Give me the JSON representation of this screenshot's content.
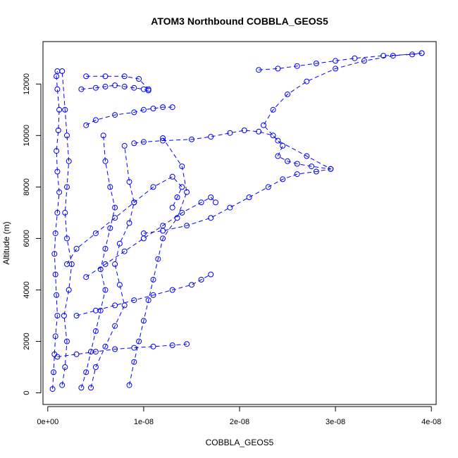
{
  "chart_data": {
    "type": "scatter",
    "title": "ATOM3 Northbound COBBLA_GEOS5",
    "xlabel": "COBBLA_GEOS5",
    "ylabel": "Altitude (m)",
    "xlim": [
      -5e-10,
      4.05e-08
    ],
    "ylim": [
      -450,
      13650
    ],
    "x_ticks": [
      0,
      1e-08,
      2e-08,
      3e-08,
      4e-08
    ],
    "x_tick_labels": [
      "0e+00",
      "1e-08",
      "2e-08",
      "3e-08",
      "4e-08"
    ],
    "y_ticks": [
      0,
      2000,
      4000,
      6000,
      8000,
      10000,
      12000
    ],
    "y_tick_labels": [
      "0",
      "2000",
      "4000",
      "6000",
      "8000",
      "10000",
      "12000"
    ],
    "marker": "open-circle",
    "color": "#0000ff",
    "grid": false,
    "series": [
      {
        "x": [
          5e-10,
          6e-10,
          7e-10,
          8e-10,
          1e-09,
          9e-10,
          8e-10,
          7e-10,
          8e-10,
          1e-09,
          1.2e-09,
          1e-09,
          9e-10,
          1.1e-09,
          1.2e-09,
          1e-09,
          9e-10,
          1e-09
        ],
        "y": [
          150,
          800,
          1500,
          2200,
          3000,
          3800,
          4600,
          5400,
          6200,
          7000,
          7800,
          8600,
          9400,
          10200,
          11000,
          11800,
          12300,
          12500
        ]
      },
      {
        "x": [
          1.5e-09,
          1.8e-09,
          2e-09,
          1.7e-09,
          2.2e-09,
          2.5e-09,
          2e-09,
          1.8e-09,
          2e-09,
          2.2e-09,
          2e-09,
          1.8e-09,
          1.5e-09
        ],
        "y": [
          300,
          1000,
          2000,
          3000,
          4000,
          5000,
          6000,
          7000,
          8000,
          9000,
          10000,
          11000,
          12500
        ]
      },
      {
        "x": [
          3.5e-09,
          4e-09,
          4.5e-09,
          5e-09,
          5.5e-09,
          6e-09,
          5.5e-09,
          6e-09,
          6.5e-09,
          7e-09,
          6.5e-09,
          6e-09,
          5.8e-09
        ],
        "y": [
          200,
          800,
          1600,
          2400,
          3200,
          4000,
          4800,
          5600,
          6400,
          7200,
          8000,
          9000,
          10000
        ]
      },
      {
        "x": [
          4.5e-09,
          5e-09,
          6e-09,
          7e-09,
          8e-09,
          7.5e-09,
          7e-09,
          7.5e-09,
          8.5e-09,
          9e-09,
          8.5e-09,
          8e-09
        ],
        "y": [
          200,
          1000,
          1800,
          2600,
          3400,
          4200,
          5000,
          5800,
          6600,
          7400,
          8200,
          9600
        ]
      },
      {
        "x": [
          8.5e-09,
          9e-09,
          9.5e-09,
          1e-08,
          1.05e-08,
          1.1e-08,
          1.15e-08,
          1.2e-08,
          1.35e-08,
          1.45e-08,
          1.4e-08,
          1.2e-08
        ],
        "y": [
          300,
          1200,
          2000,
          2800,
          3600,
          4400,
          5200,
          6000,
          6800,
          7800,
          8800,
          9900
        ]
      },
      {
        "x": [
          1e-08,
          1.2e-08,
          1.45e-08,
          1.7e-08,
          1.9e-08,
          2.1e-08,
          2.3e-08,
          2.45e-08,
          2.6e-08,
          2.8e-08,
          2.95e-08,
          2.7e-08,
          2.4e-08,
          2.25e-08,
          2.35e-08,
          2.5e-08,
          2.7e-08,
          3e-08,
          3.3e-08,
          3.6e-08,
          3.9e-08
        ],
        "y": [
          6200,
          6300,
          6500,
          6800,
          7200,
          7600,
          8000,
          8300,
          8500,
          8600,
          8700,
          9200,
          9800,
          10400,
          11000,
          11600,
          12100,
          12600,
          12900,
          13100,
          13200
        ]
      },
      {
        "x": [
          2.2e-08,
          2.4e-08,
          2.6e-08,
          2.8e-08,
          3e-08,
          3.2e-08,
          3.5e-08,
          3.8e-08,
          3.9e-08
        ],
        "y": [
          12550,
          12600,
          12700,
          12800,
          12900,
          13000,
          13100,
          13150,
          13200
        ]
      },
      {
        "x": [
          9e-09,
          1e-08,
          1.2e-08,
          1.5e-08,
          1.7e-08,
          1.9e-08,
          2.05e-08,
          2.2e-08,
          2.35e-08,
          2.45e-08,
          2.4e-08,
          2.5e-08,
          2.6e-08,
          2.75e-08,
          2.95e-08
        ],
        "y": [
          9700,
          9750,
          9800,
          9850,
          9950,
          10100,
          10200,
          10150,
          10000,
          9600,
          9200,
          9000,
          8900,
          8800,
          8700
        ]
      },
      {
        "x": [
          2e-09,
          3e-09,
          5e-09,
          7e-09,
          9e-09,
          1.1e-08,
          1.3e-08,
          1.4e-08,
          1.35e-08,
          1.3e-08
        ],
        "y": [
          5000,
          5600,
          6200,
          6800,
          7400,
          8000,
          8400,
          8000,
          7600,
          7200
        ]
      },
      {
        "x": [
          4e-09,
          6e-09,
          8e-09,
          1e-08,
          1.2e-08,
          1.4e-08,
          1.6e-08,
          1.7e-08,
          1.75e-08
        ],
        "y": [
          4500,
          5000,
          5500,
          6000,
          6500,
          7000,
          7400,
          7600,
          7400
        ]
      },
      {
        "x": [
          1e-09,
          3e-09,
          5e-09,
          7e-09,
          9e-09,
          1.1e-08,
          1.3e-08,
          1.45e-08
        ],
        "y": [
          1400,
          1500,
          1600,
          1700,
          1750,
          1800,
          1850,
          1900
        ]
      },
      {
        "x": [
          3e-09,
          5e-09,
          7e-09,
          9e-09,
          1.1e-08,
          1.3e-08,
          1.5e-08,
          1.6e-08,
          1.7e-08
        ],
        "y": [
          3000,
          3200,
          3400,
          3600,
          3800,
          4000,
          4200,
          4400,
          4600
        ]
      },
      {
        "x": [
          4e-09,
          5e-09,
          7e-09,
          9e-09,
          1e-08,
          1.1e-08,
          1.2e-08,
          1.3e-08
        ],
        "y": [
          10400,
          10600,
          10800,
          10900,
          11000,
          11050,
          11100,
          11100
        ]
      },
      {
        "x": [
          4e-09,
          6e-09,
          8e-09,
          9.5e-09,
          1.05e-08
        ],
        "y": [
          12300,
          12300,
          12300,
          12200,
          11800
        ]
      },
      {
        "x": [
          3.5e-09,
          5e-09,
          6e-09,
          7e-09,
          8e-09,
          9e-09,
          1e-08,
          1.05e-08
        ],
        "y": [
          11800,
          11850,
          11900,
          11950,
          11900,
          11850,
          11800,
          11750
        ]
      }
    ]
  }
}
